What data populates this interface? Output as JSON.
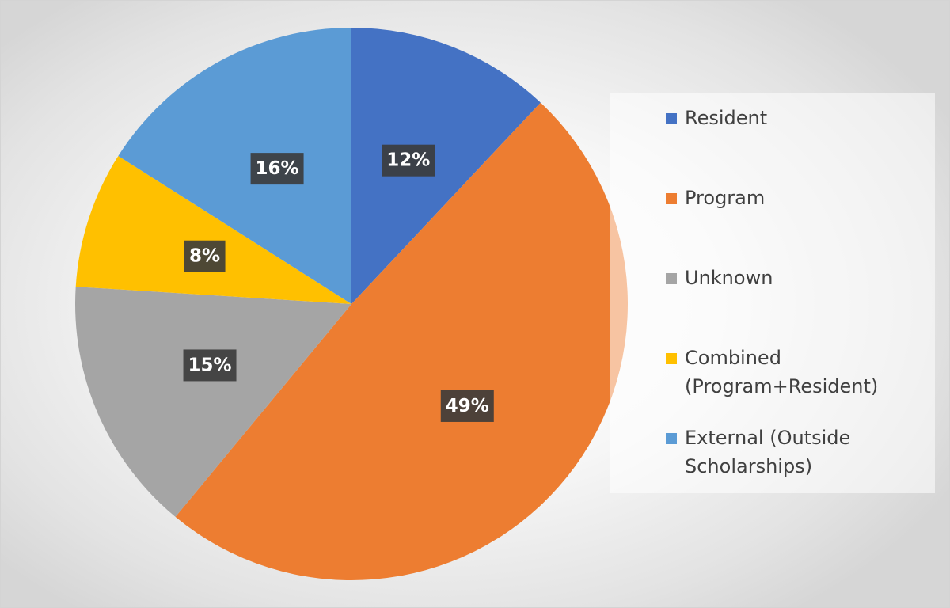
{
  "chart_data": {
    "type": "pie",
    "title": "",
    "start_angle_deg": 0,
    "direction": "clockwise",
    "legend_position": "right",
    "slices": [
      {
        "label": "Resident",
        "value": 12,
        "display": "12%",
        "color": "#4472C4"
      },
      {
        "label": "Program",
        "value": 49,
        "display": "49%",
        "color": "#ED7D31"
      },
      {
        "label": "Unknown",
        "value": 15,
        "display": "15%",
        "color": "#A5A5A5"
      },
      {
        "label": "Combined\n(Program+Resident)",
        "value": 8,
        "display": "8%",
        "color": "#FFC000"
      },
      {
        "label": "External (Outside\nScholarships)",
        "value": 16,
        "display": "16%",
        "color": "#5B9BD5"
      }
    ]
  }
}
